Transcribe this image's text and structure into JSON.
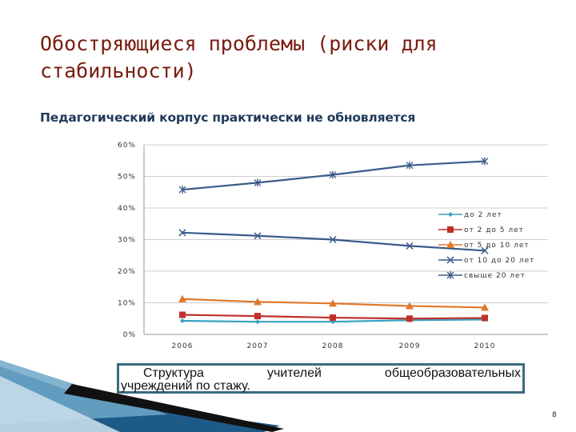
{
  "slide": {
    "title": "Обостряющиеся проблемы (риски для стабильности)",
    "subtitle": "Педагогический корпус практически не обновляется",
    "caption_line1": "Структура учителей общеобразовательных",
    "caption_line2": "учреждений по стажу.",
    "page_number": "8"
  },
  "chart_data": {
    "type": "line",
    "x": [
      "2006",
      "2007",
      "2008",
      "2009",
      "2010"
    ],
    "ylim": [
      0,
      60
    ],
    "yticks": [
      "0%",
      "10%",
      "20%",
      "30%",
      "40%",
      "50%",
      "60%"
    ],
    "grid": true,
    "legend_position": "right",
    "series": [
      {
        "name": "до 2 лет",
        "values": [
          4.3,
          4.0,
          4.0,
          4.5,
          4.7
        ],
        "color": "#3aa0c0",
        "marker": "diamond"
      },
      {
        "name": "от 2 до 5 лет",
        "values": [
          6.2,
          5.8,
          5.3,
          5.0,
          5.2
        ],
        "color": "#c0302a",
        "marker": "square"
      },
      {
        "name": "от 5 до 10 лет",
        "values": [
          11.2,
          10.3,
          9.8,
          9.0,
          8.5
        ],
        "color": "#e0782a",
        "marker": "triangle"
      },
      {
        "name": "от 10 до 20 лет",
        "values": [
          32.2,
          31.2,
          30.0,
          28.0,
          26.5
        ],
        "color": "#3b5a8a",
        "marker": "x"
      },
      {
        "name": "свыше 20 лет",
        "values": [
          45.8,
          48.0,
          50.5,
          53.5,
          54.8
        ],
        "color": "#3b5a8a",
        "marker": "star"
      }
    ]
  }
}
